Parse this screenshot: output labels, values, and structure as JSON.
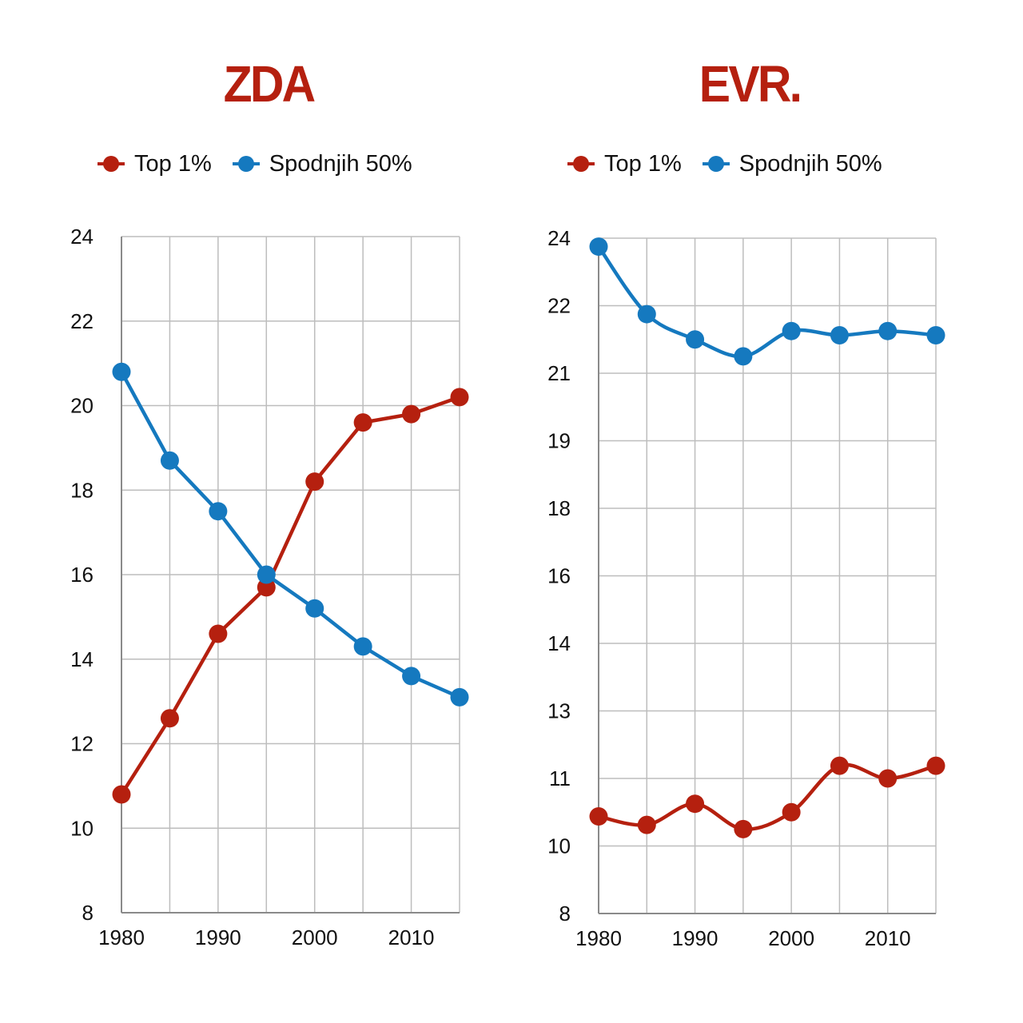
{
  "colors": {
    "top1": "#b5200f",
    "bottom50": "#1579bf",
    "title": "#b5200f",
    "grid": "#bdbdbd"
  },
  "legend": {
    "top1_label": "Top 1%",
    "bottom50_label": "Spodnjih 50%"
  },
  "chart_data": [
    {
      "type": "line",
      "title": "ZDA",
      "x": [
        1980,
        1985,
        1990,
        1995,
        2000,
        2005,
        2010,
        2015
      ],
      "x_ticks": [
        "1980",
        "1990",
        "2000",
        "2010"
      ],
      "y_ticks": [
        "8",
        "10",
        "12",
        "14",
        "16",
        "18",
        "20",
        "22",
        "24"
      ],
      "ylim": [
        8,
        24
      ],
      "grid": true,
      "legend_position": "top",
      "series": [
        {
          "name": "Top 1%",
          "color": "#b5200f",
          "values": [
            10.8,
            12.6,
            14.6,
            15.7,
            18.2,
            19.6,
            19.8,
            20.2
          ]
        },
        {
          "name": "Spodnjih 50%",
          "color": "#1579bf",
          "values": [
            20.8,
            18.7,
            17.5,
            16.0,
            15.2,
            14.3,
            13.6,
            13.1
          ]
        }
      ]
    },
    {
      "type": "line",
      "title": "EVR.",
      "x": [
        1980,
        1985,
        1990,
        1995,
        2000,
        2005,
        2010,
        2015
      ],
      "x_ticks": [
        "1980",
        "1990",
        "2000",
        "2010"
      ],
      "y_ticks": [
        "8",
        "10",
        "11",
        "13",
        "14",
        "16",
        "18",
        "19",
        "21",
        "22",
        "24"
      ],
      "ylim": [
        8,
        24
      ],
      "grid": true,
      "legend_position": "top",
      "series": [
        {
          "name": "Top 1%",
          "color": "#b5200f",
          "values": [
            10.3,
            10.1,
            10.6,
            10.0,
            10.4,
            11.5,
            11.2,
            11.5
          ]
        },
        {
          "name": "Spodnjih 50%",
          "color": "#1579bf",
          "values": [
            23.8,
            22.2,
            21.6,
            21.2,
            21.8,
            21.7,
            21.8,
            21.7
          ]
        }
      ]
    }
  ]
}
